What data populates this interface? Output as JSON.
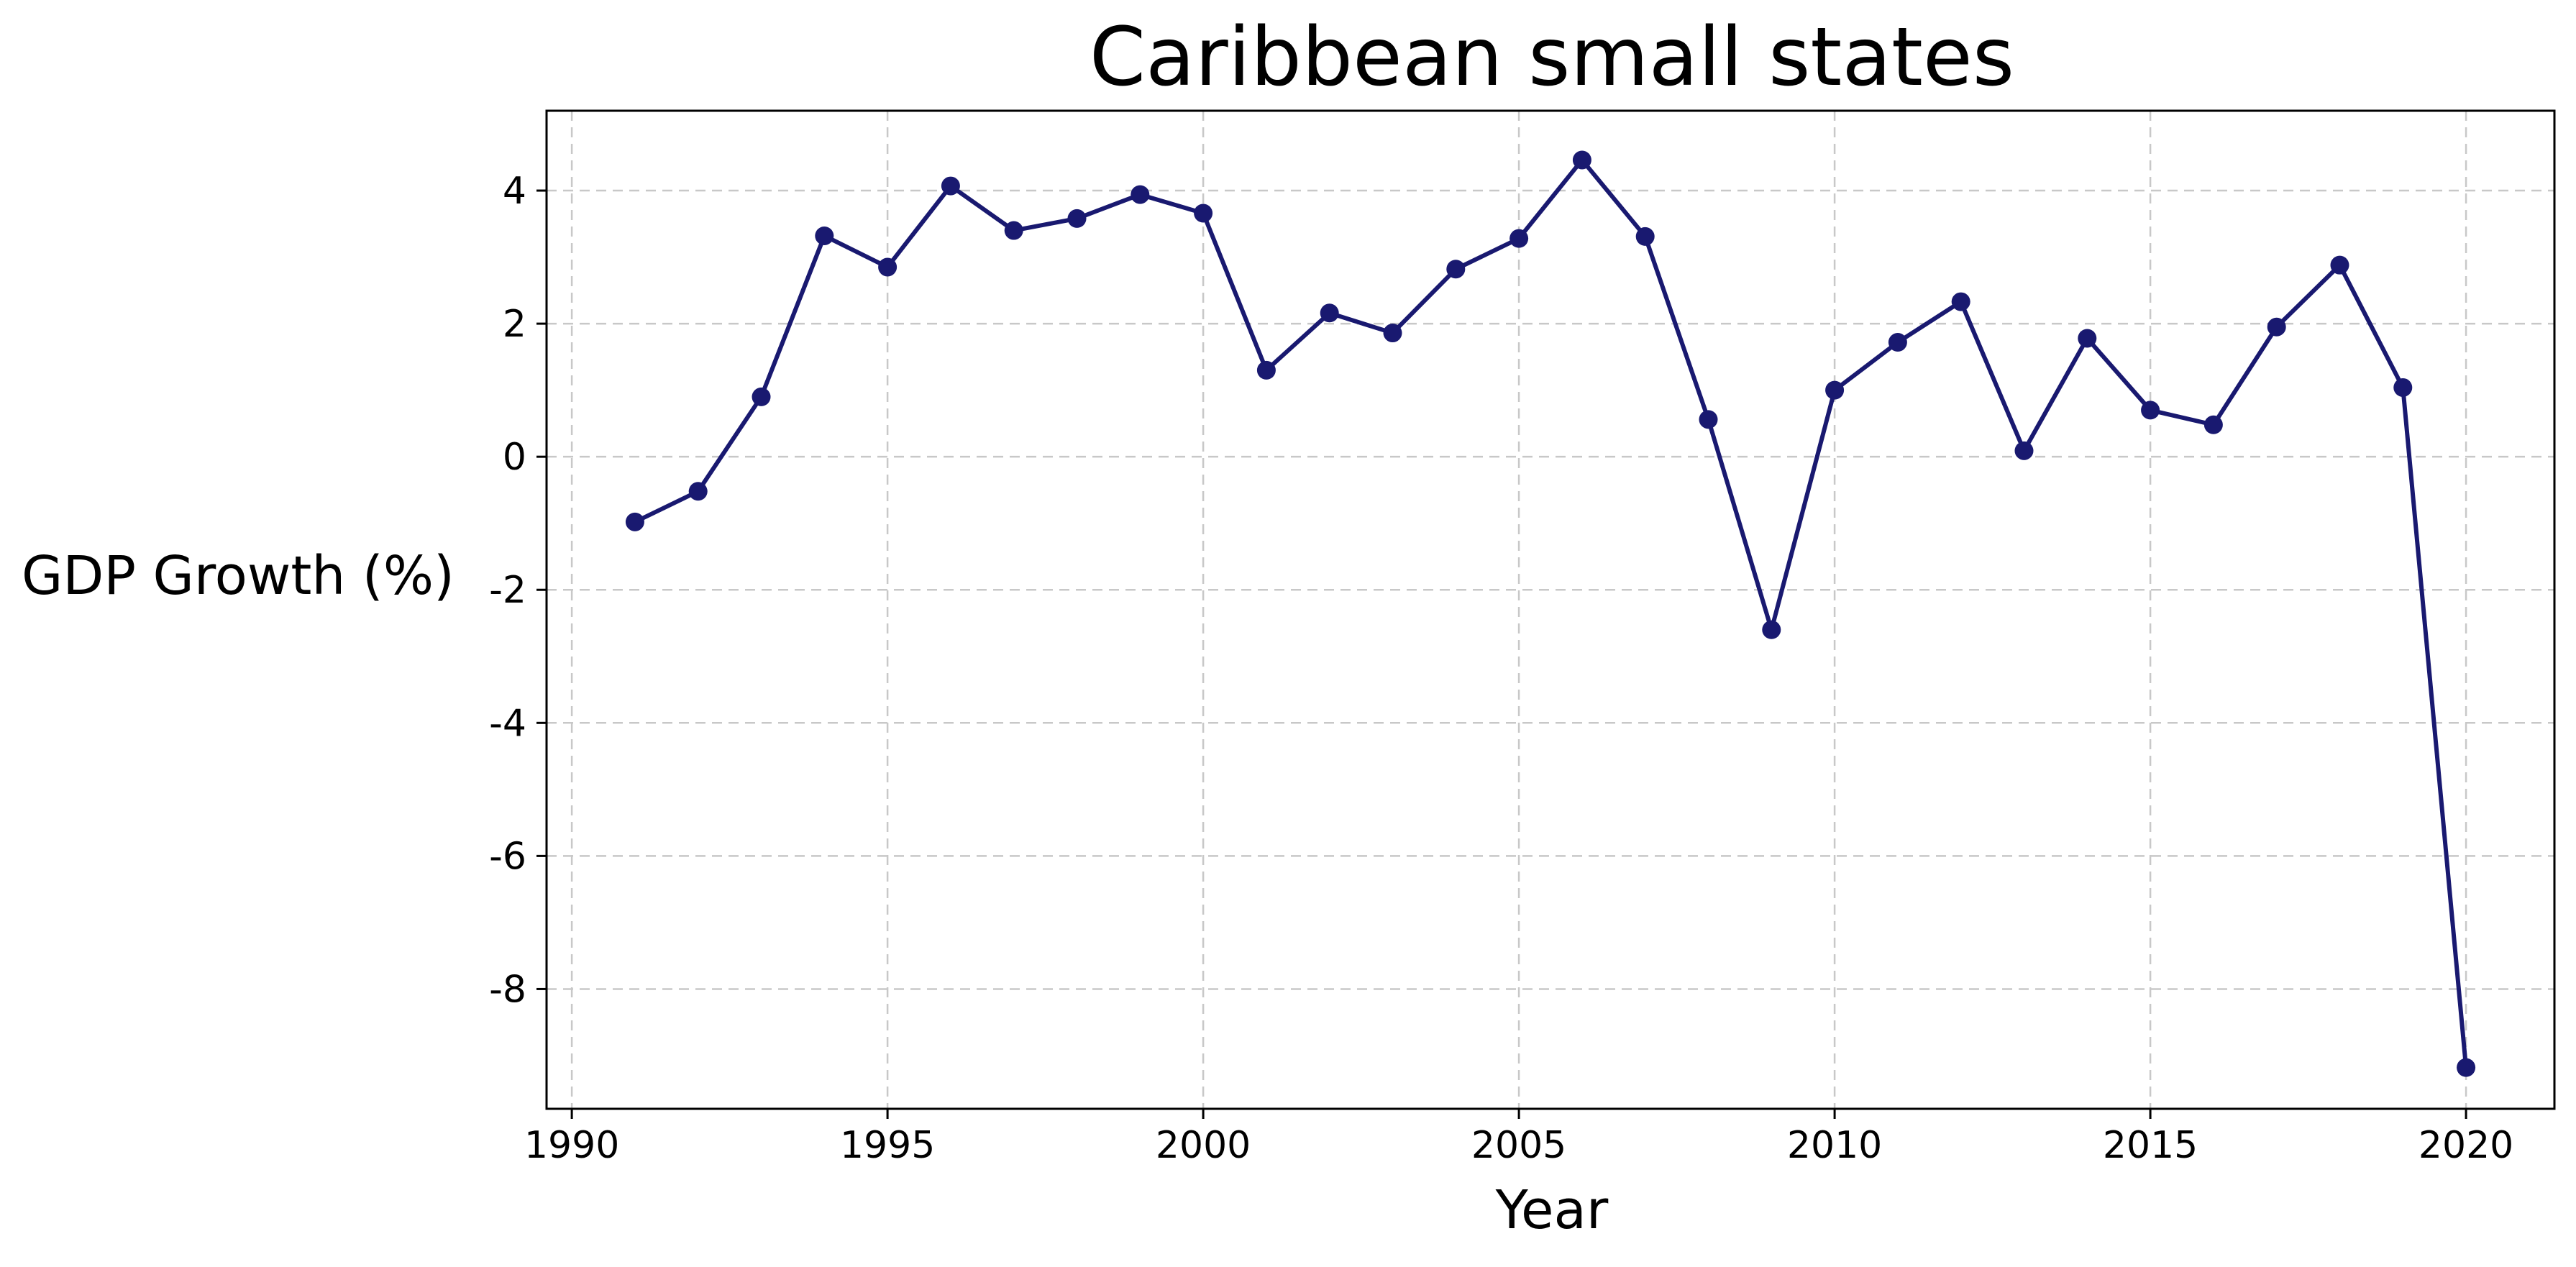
{
  "chart_data": {
    "type": "line",
    "title": "Caribbean small states",
    "xlabel": "Year",
    "ylabel": "GDP Growth (%)",
    "xlim": [
      1989.6,
      2021.4
    ],
    "ylim": [
      -9.8,
      5.2
    ],
    "xticks": [
      1990,
      1995,
      2000,
      2005,
      2010,
      2015,
      2020
    ],
    "yticks": [
      -8,
      -6,
      -4,
      -2,
      0,
      2,
      4
    ],
    "grid": true,
    "color": "#191970",
    "series": [
      {
        "x": [
          1991,
          1992,
          1993,
          1994,
          1995,
          1996,
          1997,
          1998,
          1999,
          2000,
          2001,
          2002,
          2003,
          2004,
          2005,
          2006,
          2007,
          2008,
          2009,
          2010,
          2011,
          2012,
          2013,
          2014,
          2015,
          2016,
          2017,
          2018,
          2019,
          2020
        ],
        "y": [
          -0.98,
          -0.52,
          0.9,
          3.32,
          2.85,
          4.07,
          3.4,
          3.58,
          3.94,
          3.66,
          1.3,
          2.16,
          1.86,
          2.82,
          3.28,
          4.46,
          3.31,
          0.56,
          -2.6,
          1.0,
          1.72,
          2.33,
          0.09,
          1.78,
          0.7,
          0.48,
          1.95,
          2.88,
          1.04,
          -9.18
        ]
      }
    ]
  }
}
